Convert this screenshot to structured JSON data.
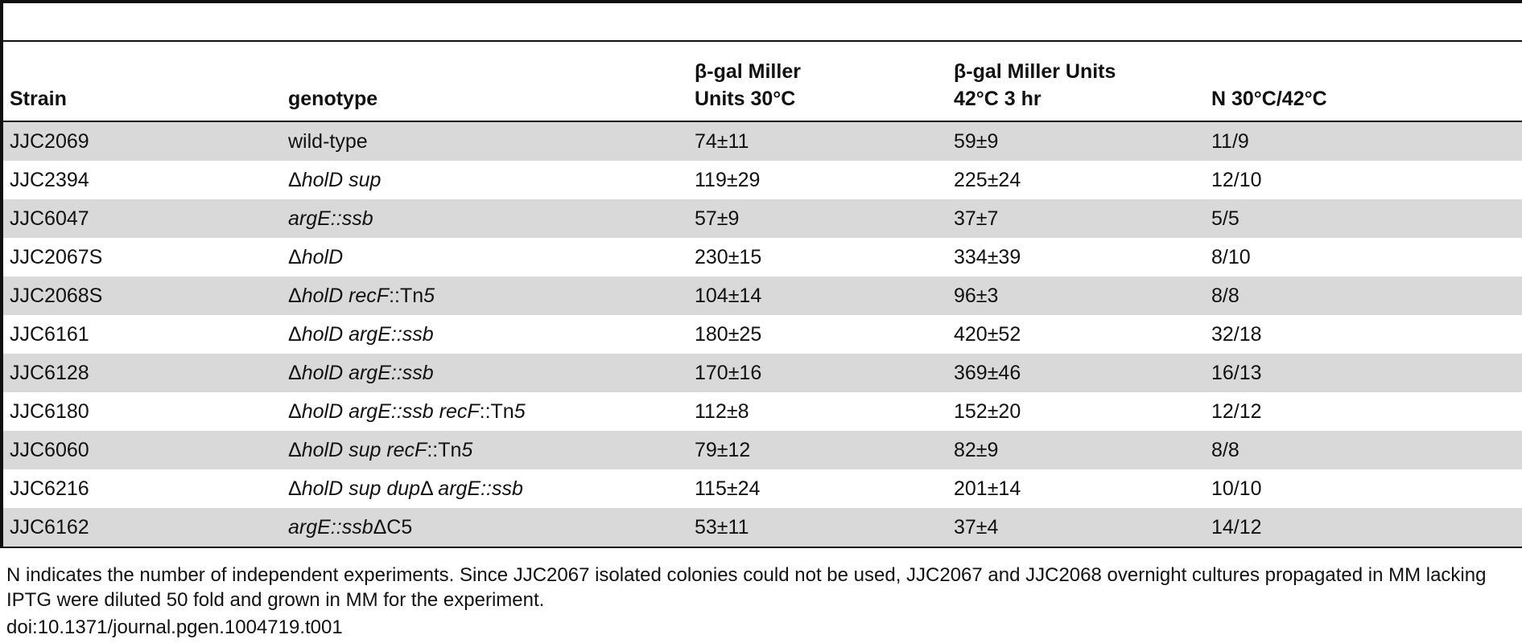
{
  "table": {
    "headers": [
      {
        "line1": "",
        "line2": "Strain"
      },
      {
        "line1": "",
        "line2": "genotype"
      },
      {
        "line1": "β-gal Miller",
        "line2": "Units 30°C"
      },
      {
        "line1": "β-gal Miller Units",
        "line2": "42°C 3 hr"
      },
      {
        "line1": "",
        "line2": "N 30°C/42°C"
      }
    ],
    "rows": [
      {
        "strain": "JJC2069",
        "genotype": [
          {
            "t": "wild-type",
            "i": false
          }
        ],
        "u30": "74±11",
        "u42": "59±9",
        "n": "11/9"
      },
      {
        "strain": "JJC2394",
        "genotype": [
          {
            "t": "Δ",
            "i": false
          },
          {
            "t": "holD sup",
            "i": true
          }
        ],
        "u30": "119±29",
        "u42": "225±24",
        "n": "12/10"
      },
      {
        "strain": "JJC6047",
        "genotype": [
          {
            "t": "argE::ssb",
            "i": true
          }
        ],
        "u30": "57±9",
        "u42": "37±7",
        "n": "5/5"
      },
      {
        "strain": "JJC2067S",
        "genotype": [
          {
            "t": "Δ",
            "i": false
          },
          {
            "t": "holD",
            "i": true
          }
        ],
        "u30": "230±15",
        "u42": "334±39",
        "n": "8/10"
      },
      {
        "strain": "JJC2068S",
        "genotype": [
          {
            "t": "Δ",
            "i": false
          },
          {
            "t": "holD recF",
            "i": true
          },
          {
            "t": "::Tn",
            "i": false
          },
          {
            "t": "5",
            "i": true
          }
        ],
        "u30": "104±14",
        "u42": "96±3",
        "n": "8/8"
      },
      {
        "strain": "JJC6161",
        "genotype": [
          {
            "t": "Δ",
            "i": false
          },
          {
            "t": "holD argE::ssb",
            "i": true
          }
        ],
        "u30": "180±25",
        "u42": "420±52",
        "n": "32/18"
      },
      {
        "strain": "JJC6128",
        "genotype": [
          {
            "t": "Δ",
            "i": false
          },
          {
            "t": "holD argE::ssb",
            "i": true
          }
        ],
        "u30": "170±16",
        "u42": "369±46",
        "n": "16/13"
      },
      {
        "strain": "JJC6180",
        "genotype": [
          {
            "t": "Δ",
            "i": false
          },
          {
            "t": "holD argE::ssb recF",
            "i": true
          },
          {
            "t": "::Tn",
            "i": false
          },
          {
            "t": "5",
            "i": true
          }
        ],
        "u30": "112±8",
        "u42": "152±20",
        "n": "12/12"
      },
      {
        "strain": "JJC6060",
        "genotype": [
          {
            "t": "Δ",
            "i": false
          },
          {
            "t": "holD sup recF",
            "i": true
          },
          {
            "t": "::Tn",
            "i": false
          },
          {
            "t": "5",
            "i": true
          }
        ],
        "u30": "79±12",
        "u42": "82±9",
        "n": "8/8"
      },
      {
        "strain": "JJC6216",
        "genotype": [
          {
            "t": "Δ",
            "i": false
          },
          {
            "t": "holD sup dup",
            "i": true
          },
          {
            "t": "Δ ",
            "i": false
          },
          {
            "t": "argE::ssb",
            "i": true
          }
        ],
        "u30": "115±24",
        "u42": "201±14",
        "n": "10/10"
      },
      {
        "strain": "JJC6162",
        "genotype": [
          {
            "t": "argE::ssb",
            "i": true
          },
          {
            "t": "ΔC5",
            "i": false
          }
        ],
        "u30": "53±11",
        "u42": "37±4",
        "n": "14/12"
      }
    ]
  },
  "footnote": "N indicates the number of independent experiments. Since JJC2067 isolated colonies could not be used, JJC2067 and JJC2068 overnight cultures propagated in MM lacking IPTG were diluted 50 fold and grown in MM for the experiment.",
  "doi": "doi:10.1371/journal.pgen.1004719.t001",
  "colors": {
    "shade": "#d9d9d9",
    "rule": "#111111"
  }
}
